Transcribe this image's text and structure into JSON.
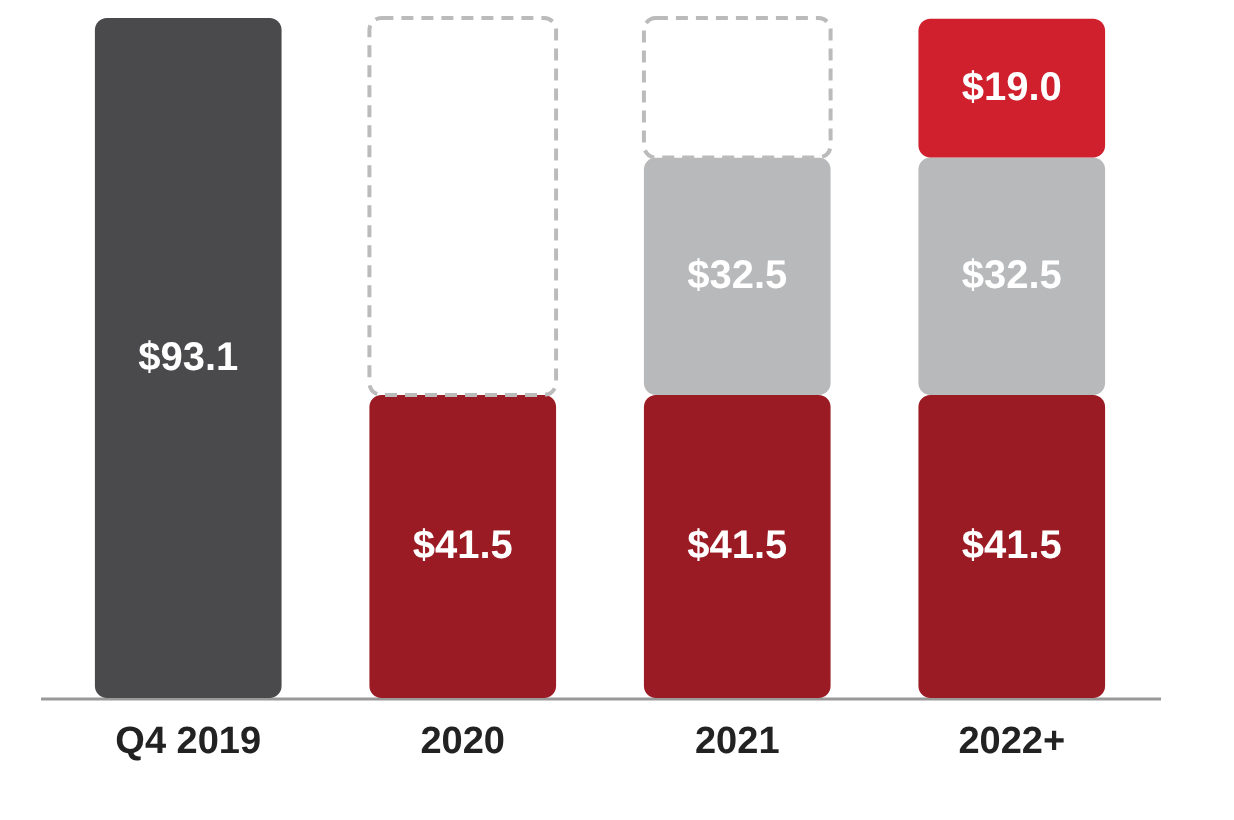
{
  "chart_data": {
    "type": "bar",
    "stacked": true,
    "categories": [
      "Q4 2019",
      "2020",
      "2021",
      "2022+"
    ],
    "series": [
      {
        "color": "#4a4a4c",
        "values": [
          93.1,
          null,
          null,
          null
        ],
        "value_labels": [
          "$93.1",
          null,
          null,
          null
        ]
      },
      {
        "color": "#9b1b24",
        "values": [
          null,
          41.5,
          41.5,
          41.5
        ],
        "value_labels": [
          null,
          "$41.5",
          "$41.5",
          "$41.5"
        ]
      },
      {
        "color": "#b8b9bb",
        "values": [
          null,
          null,
          32.5,
          32.5
        ],
        "value_labels": [
          null,
          null,
          "$32.5",
          "$32.5"
        ]
      },
      {
        "color": "#d0202e",
        "values": [
          null,
          null,
          null,
          19.0
        ],
        "value_labels": [
          null,
          null,
          null,
          "$19.0"
        ]
      },
      {
        "color": "#ffffff",
        "line_style": "dashed",
        "values": [
          null,
          51.6,
          19.1,
          null
        ]
      }
    ]
  }
}
